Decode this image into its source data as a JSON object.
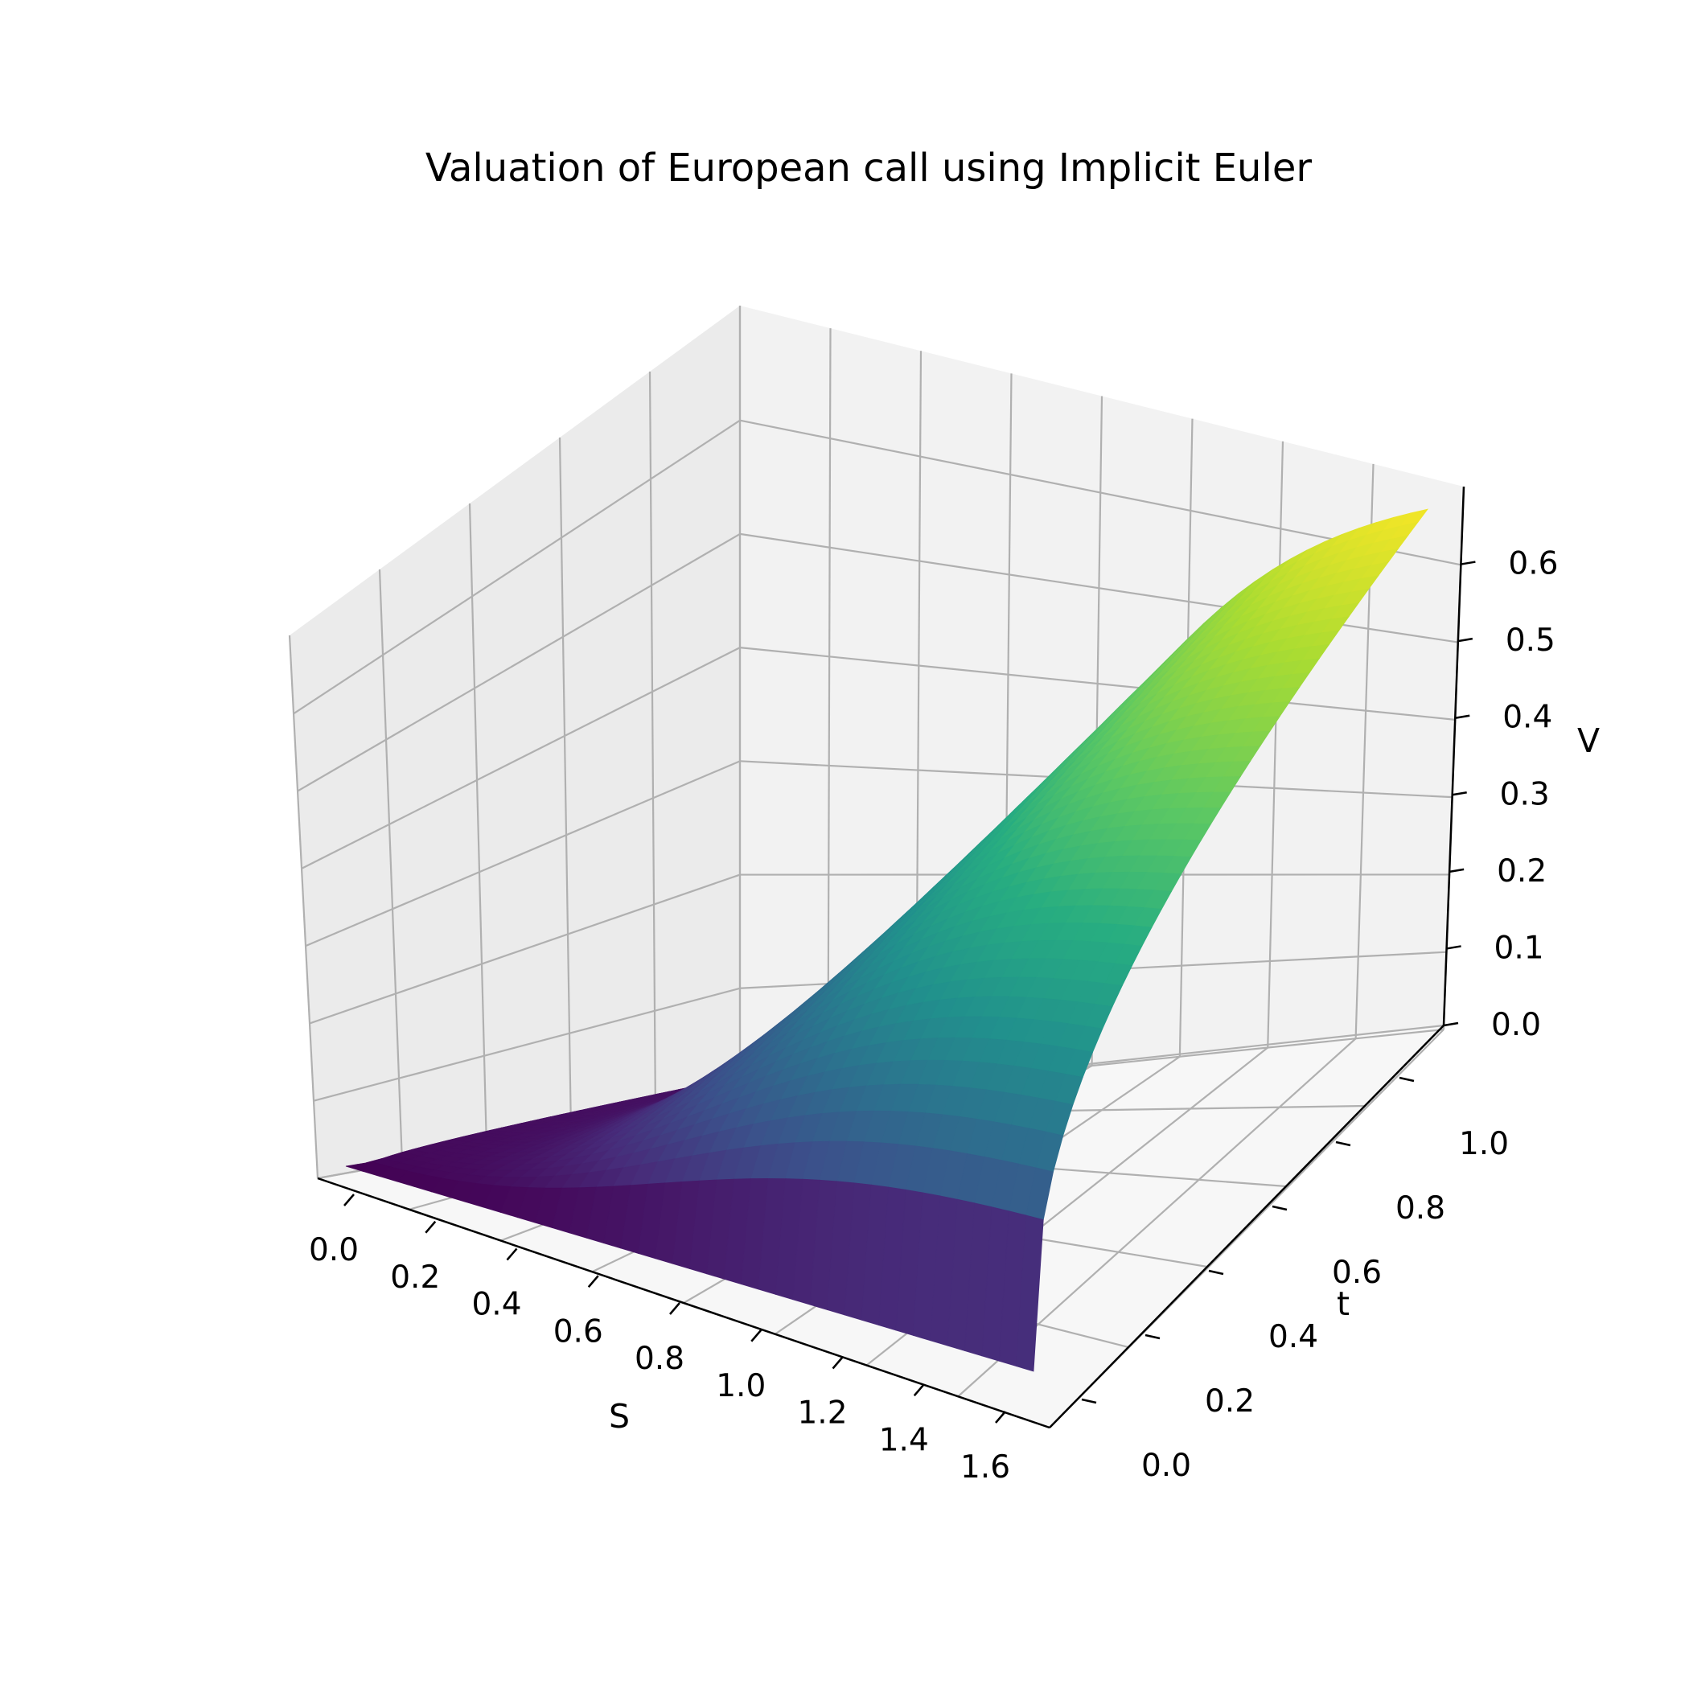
{
  "chart_data": {
    "type": "surface",
    "title": "Valuation of European call using Implicit Euler",
    "xlabel": "S",
    "ylabel": "t",
    "zlabel": "V",
    "xlim": [
      0.0,
      1.6
    ],
    "ylim": [
      0.0,
      1.0
    ],
    "zlim": [
      0.0,
      0.68
    ],
    "xticks": [
      "0.0",
      "0.2",
      "0.4",
      "0.6",
      "0.8",
      "1.0",
      "1.2",
      "1.4",
      "1.6"
    ],
    "yticks": [
      "0.0",
      "0.2",
      "0.4",
      "0.6",
      "0.8",
      "1.0"
    ],
    "zticks": [
      "0.0",
      "0.1",
      "0.2",
      "0.3",
      "0.4",
      "0.5",
      "0.6"
    ],
    "grid": true,
    "colormap": "viridis",
    "surface_corners": [
      {
        "S": 0.0,
        "t": 0.0,
        "V": 0.0
      },
      {
        "S": 1.6,
        "t": 0.0,
        "V": 0.0
      },
      {
        "S": 0.0,
        "t": 1.0,
        "V": 0.0
      },
      {
        "S": 1.6,
        "t": 1.0,
        "V": 0.68
      }
    ],
    "surface_samples": [
      {
        "S": 1.6,
        "t": 1.0,
        "V": 0.68
      },
      {
        "S": 1.2,
        "t": 1.0,
        "V": 0.6
      },
      {
        "S": 0.8,
        "t": 1.0,
        "V": 0.5
      },
      {
        "S": 0.4,
        "t": 1.0,
        "V": 0.36
      },
      {
        "S": 0.0,
        "t": 1.0,
        "V": 0.0
      },
      {
        "S": 1.6,
        "t": 0.2,
        "V": 0.6
      },
      {
        "S": 1.6,
        "t": 0.0,
        "V": 0.0
      }
    ],
    "colors": {
      "pane_back": "#f2f2f2",
      "pane_side": "#ebebeb",
      "pane_floor": "#f7f7f7",
      "grid": "#b0b0b0",
      "axis": "#000000"
    }
  }
}
